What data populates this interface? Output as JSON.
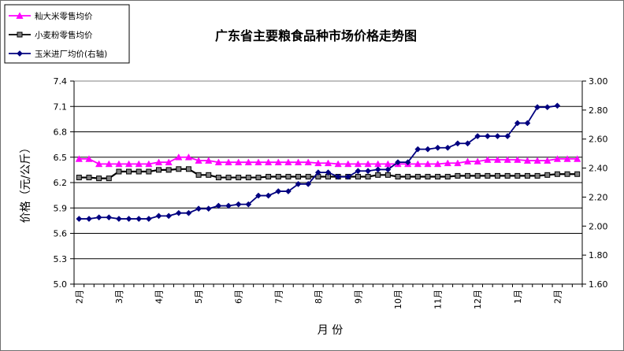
{
  "chart_data": {
    "type": "line",
    "title": "广东省主要粮食品种市场价格走势图",
    "xlabel": "月  份",
    "ylabel": "价格（元/公斤）",
    "y2label": "",
    "ylim": [
      5.0,
      7.4
    ],
    "y_ticks": [
      "5.0",
      "5.3",
      "5.6",
      "5.9",
      "6.2",
      "6.5",
      "6.8",
      "7.1",
      "7.4"
    ],
    "y2lim": [
      1.6,
      3.0
    ],
    "y2_ticks": [
      "1.60",
      "1.80",
      "2.00",
      "2.20",
      "2.40",
      "2.60",
      "2.80",
      "3.00"
    ],
    "grid": true,
    "legend_position": "top-left",
    "month_labels": [
      {
        "label": "2月",
        "week": 0
      },
      {
        "label": "3月",
        "week": 4
      },
      {
        "label": "4月",
        "week": 8
      },
      {
        "label": "5月",
        "week": 12
      },
      {
        "label": "6月",
        "week": 16
      },
      {
        "label": "7月",
        "week": 20
      },
      {
        "label": "8月",
        "week": 24
      },
      {
        "label": "9月",
        "week": 28
      },
      {
        "label": "10月",
        "week": 32
      },
      {
        "label": "11月",
        "week": 36
      },
      {
        "label": "12月",
        "week": 40
      },
      {
        "label": "1月",
        "week": 44
      },
      {
        "label": "2月",
        "week": 48
      }
    ],
    "series": [
      {
        "name": "籼大米零售均价",
        "axis": "left",
        "color": "#ff00ff",
        "marker": "triangle",
        "values": [
          6.48,
          6.48,
          6.42,
          6.42,
          6.42,
          6.42,
          6.42,
          6.42,
          6.44,
          6.44,
          6.5,
          6.5,
          6.46,
          6.46,
          6.44,
          6.44,
          6.44,
          6.44,
          6.44,
          6.44,
          6.44,
          6.44,
          6.44,
          6.44,
          6.43,
          6.43,
          6.42,
          6.42,
          6.42,
          6.42,
          6.42,
          6.42,
          6.42,
          6.42,
          6.42,
          6.42,
          6.42,
          6.43,
          6.43,
          6.45,
          6.45,
          6.47,
          6.47,
          6.47,
          6.47,
          6.46,
          6.46,
          6.46,
          6.48,
          6.48,
          6.48
        ]
      },
      {
        "name": "小麦粉零售均价",
        "axis": "left",
        "color": "#000000",
        "marker": "square",
        "values": [
          6.26,
          6.26,
          6.25,
          6.25,
          6.33,
          6.33,
          6.33,
          6.33,
          6.35,
          6.35,
          6.36,
          6.36,
          6.29,
          6.29,
          6.26,
          6.26,
          6.26,
          6.26,
          6.26,
          6.27,
          6.27,
          6.27,
          6.27,
          6.27,
          6.27,
          6.27,
          6.27,
          6.27,
          6.27,
          6.27,
          6.29,
          6.29,
          6.27,
          6.27,
          6.27,
          6.27,
          6.27,
          6.27,
          6.28,
          6.28,
          6.28,
          6.28,
          6.28,
          6.28,
          6.28,
          6.28,
          6.28,
          6.29,
          6.3,
          6.3,
          6.3
        ]
      },
      {
        "name": "玉米进厂均价(右轴)",
        "axis": "right",
        "color": "#000080",
        "marker": "diamond",
        "values": [
          2.05,
          2.05,
          2.06,
          2.06,
          2.05,
          2.05,
          2.05,
          2.05,
          2.07,
          2.07,
          2.09,
          2.09,
          2.12,
          2.12,
          2.14,
          2.14,
          2.15,
          2.15,
          2.21,
          2.21,
          2.24,
          2.24,
          2.29,
          2.29,
          2.37,
          2.37,
          2.34,
          2.34,
          2.38,
          2.38,
          2.39,
          2.39,
          2.44,
          2.44,
          2.53,
          2.53,
          2.54,
          2.54,
          2.57,
          2.57,
          2.62,
          2.62,
          2.62,
          2.62,
          2.71,
          2.71,
          2.82,
          2.82,
          2.83
        ]
      }
    ]
  }
}
